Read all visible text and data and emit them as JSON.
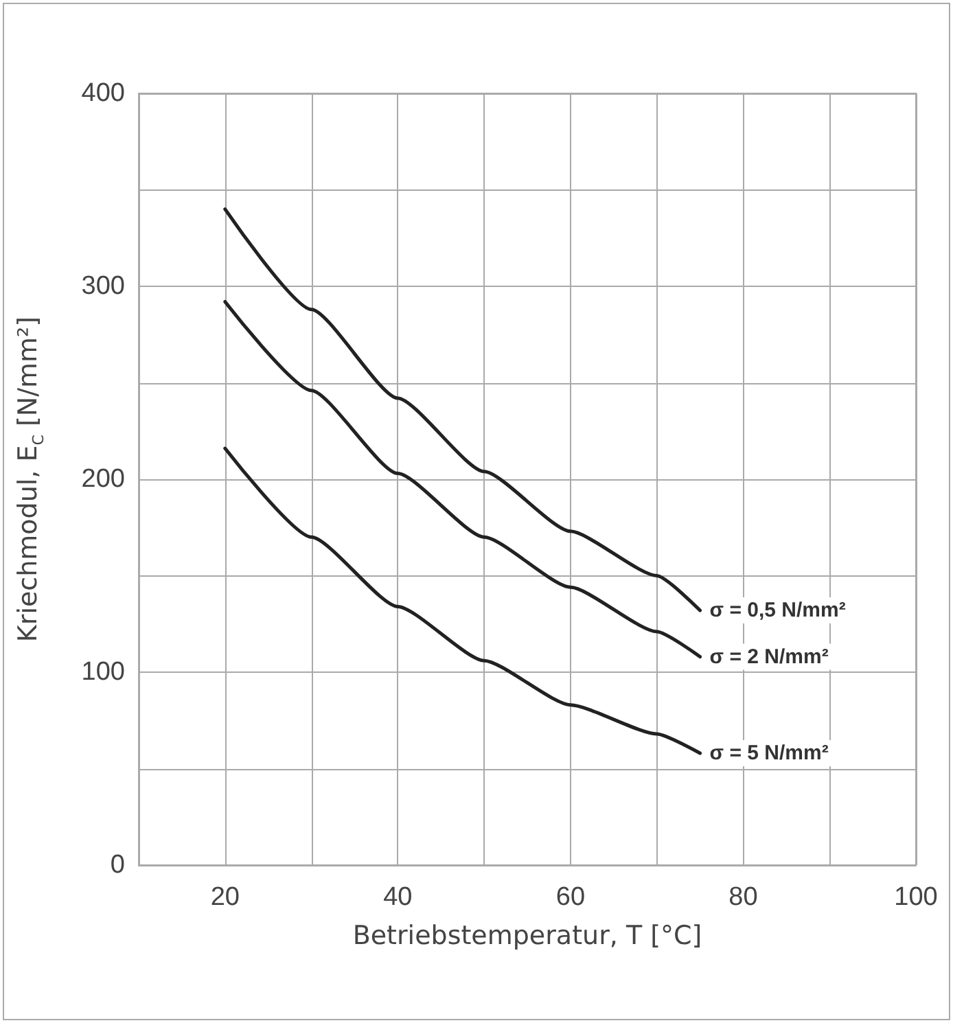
{
  "chart_data": {
    "type": "line",
    "xlabel": "Betriebstemperatur, T [°C]",
    "ylabel": "Kriechmodul, E$_{C}$ [N/mm²]",
    "x": [
      20,
      30,
      40,
      50,
      60,
      70,
      75
    ],
    "series": [
      {
        "name": "σ = 0,5 N/mm²",
        "color": "#222222",
        "values": [
          340,
          288,
          242,
          204,
          173,
          150,
          132
        ]
      },
      {
        "name": "σ = 2 N/mm²",
        "color": "#222222",
        "values": [
          292,
          246,
          203,
          170,
          144,
          121,
          108
        ]
      },
      {
        "name": "σ = 5 N/mm²",
        "color": "#222222",
        "values": [
          216,
          170,
          134,
          106,
          83,
          68,
          58
        ]
      }
    ],
    "xlim": [
      10,
      100
    ],
    "xticks": [
      {
        "value": 10,
        "label": null
      },
      20,
      {
        "value": 30,
        "label": null
      },
      40,
      {
        "value": 50,
        "label": null
      },
      60,
      {
        "value": 70,
        "label": null
      },
      80,
      {
        "value": 90,
        "label": null
      },
      100
    ],
    "ylim": [
      0,
      400
    ],
    "yticks": [
      0,
      {
        "value": 50,
        "label": null
      },
      100,
      {
        "value": 150,
        "label": null
      },
      200,
      {
        "value": 250,
        "label": null
      },
      300,
      {
        "value": 350,
        "label": null
      },
      400
    ],
    "grid": true,
    "legend": false,
    "marker": "none",
    "line_style": "solid"
  }
}
